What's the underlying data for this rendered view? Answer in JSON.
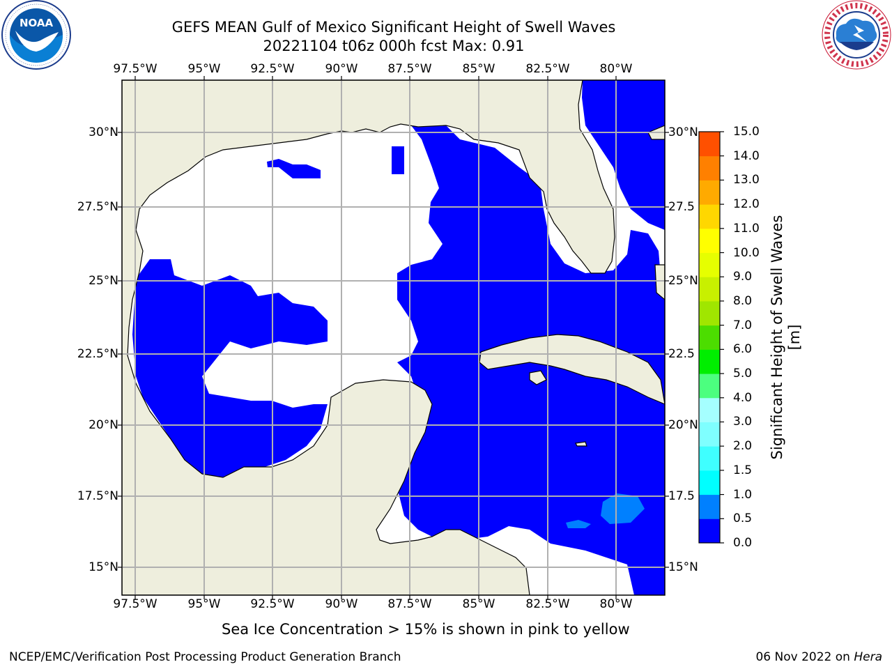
{
  "header": {
    "title_line1": "GEFS MEAN Gulf of Mexico Significant Height of Swell Waves",
    "title_line2": "20221104 t06z 000h fcst   Max: 0.91"
  },
  "logos": {
    "left": {
      "name": "noaa-logo",
      "text": "NOAA",
      "ring_text": "NATIONAL OCEANIC AND ATMOSPHERIC ADMINISTRATION · U.S. DEPARTMENT OF COMMERCE"
    },
    "right": {
      "name": "nws-logo",
      "ring_text": "NATIONAL WEATHER SERVICE"
    }
  },
  "map": {
    "lon_ticks": [
      "97.5°W",
      "95°W",
      "92.5°W",
      "90°W",
      "87.5°W",
      "85°W",
      "82.5°W",
      "80°W"
    ],
    "lat_ticks": [
      "30°N",
      "27.5°N",
      "25°N",
      "22.5°N",
      "20°N",
      "17.5°N",
      "15°N"
    ],
    "lat_ticks_right": [
      "30°N",
      "27.5",
      "25°N",
      "22.5",
      "20°N",
      "17.5",
      "15°N"
    ],
    "colors": {
      "land": "#eeeedd",
      "water_low": "#0000ff",
      "water_mid": "#0080ff",
      "no_data": "#ffffff",
      "grid": "#b0b0b0"
    }
  },
  "colorbar": {
    "title": "Significant Height of Swell Waves [m]",
    "labels": [
      "0.0",
      "0.5",
      "1.0",
      "1.5",
      "2.0",
      "3.0",
      "4.0",
      "5.0",
      "6.0",
      "7.0",
      "8.0",
      "9.0",
      "10.0",
      "11.0",
      "12.0",
      "13.0",
      "14.0",
      "15.0"
    ],
    "colors": [
      "#0000ff",
      "#0080ff",
      "#00ffff",
      "#3fffff",
      "#7fffff",
      "#a5ffff",
      "#4cff7f",
      "#00ee00",
      "#4cdd00",
      "#a0e600",
      "#c8f000",
      "#e6ff00",
      "#ffff00",
      "#ffd700",
      "#ffaa00",
      "#ff8000",
      "#ff5000",
      "#ff2000",
      "#ff0000"
    ]
  },
  "caption": "Sea Ice Concentration > 15% is shown in pink to yellow",
  "footer": {
    "left": "NCEP/EMC/Verification Post Processing Product Generation Branch",
    "right_date": "06 Nov 2022 on",
    "right_host": "Hera"
  }
}
